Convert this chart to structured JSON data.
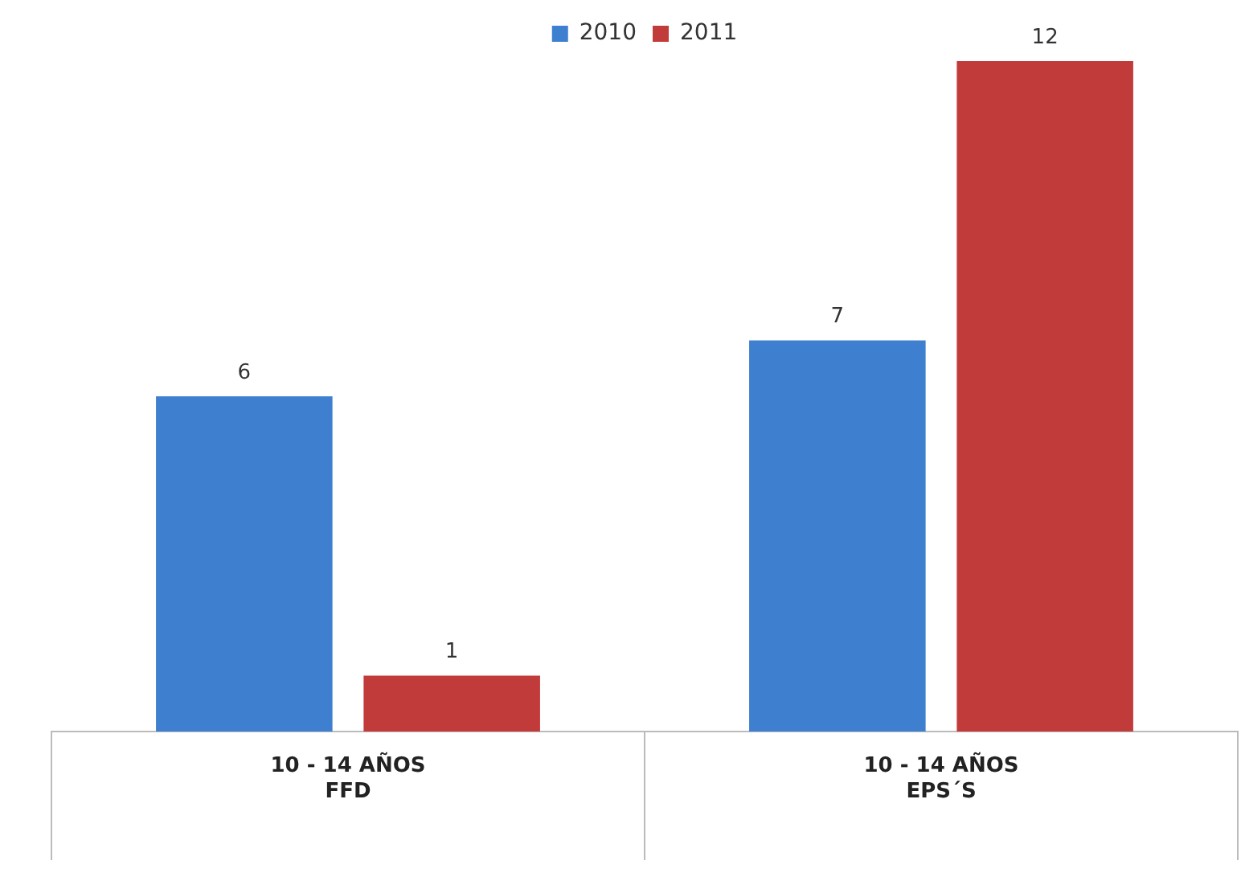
{
  "chart_data": {
    "type": "bar",
    "categories": [
      "10 - 14 AÑOS\nFFD",
      "10 - 14 AÑOS\nEPS´S"
    ],
    "series": [
      {
        "name": "2010",
        "color": "#3f7fcf",
        "values": [
          6,
          7
        ]
      },
      {
        "name": "2011",
        "color": "#c23b3b",
        "values": [
          1,
          12
        ]
      }
    ],
    "data_labels": true,
    "legend": "top",
    "grid": false
  }
}
